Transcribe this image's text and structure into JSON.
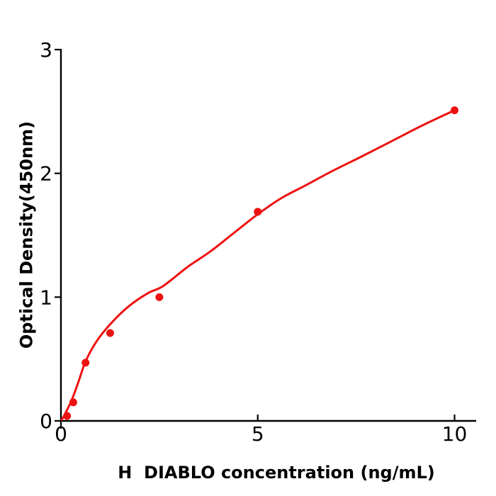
{
  "figure": {
    "background": "#ffffff",
    "axis_color": "#000000",
    "accent_red": "#ed1212"
  },
  "chart_data": {
    "type": "scatter",
    "title": "",
    "xlabel": "H  DIABLO concentration (ng/mL)",
    "ylabel": "Optical Density(450nm)",
    "x_tick_labels": [
      "0",
      "5",
      "10"
    ],
    "x_tick_values": [
      0,
      5,
      10
    ],
    "y_tick_labels": [
      "0",
      "1",
      "2",
      "3"
    ],
    "y_tick_values": [
      0,
      1,
      2,
      3
    ],
    "xlim": [
      0,
      10.55
    ],
    "ylim": [
      0,
      3
    ],
    "grid": false,
    "legend": "none",
    "series": [
      {
        "name": "standard-data-points",
        "type": "scatter",
        "color": "#ed1212",
        "marker": "circle",
        "x": [
          0.156,
          0.313,
          0.625,
          1.25,
          2.5,
          5,
          10
        ],
        "y": [
          0.04,
          0.15,
          0.47,
          0.71,
          1.0,
          1.69,
          2.51
        ]
      },
      {
        "name": "fit-curve",
        "type": "line",
        "color": "#ed1212",
        "points": [
          [
            0.02,
            0.01
          ],
          [
            0.08,
            0.04
          ],
          [
            0.156,
            0.09
          ],
          [
            0.22,
            0.13
          ],
          [
            0.313,
            0.2
          ],
          [
            0.45,
            0.32
          ],
          [
            0.625,
            0.48
          ],
          [
            0.9,
            0.64
          ],
          [
            1.25,
            0.78
          ],
          [
            1.7,
            0.92
          ],
          [
            2.2,
            1.03
          ],
          [
            2.6,
            1.09
          ],
          [
            3.2,
            1.24
          ],
          [
            3.8,
            1.37
          ],
          [
            4.4,
            1.52
          ],
          [
            5.0,
            1.67
          ],
          [
            5.6,
            1.8
          ],
          [
            6.2,
            1.9
          ],
          [
            6.9,
            2.02
          ],
          [
            7.6,
            2.13
          ],
          [
            8.4,
            2.26
          ],
          [
            9.2,
            2.39
          ],
          [
            10.0,
            2.51
          ]
        ]
      }
    ]
  }
}
